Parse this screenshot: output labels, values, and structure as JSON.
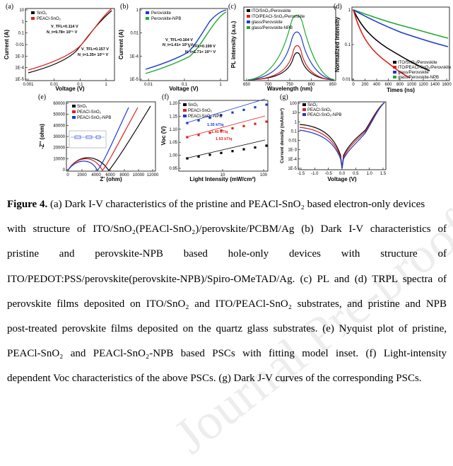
{
  "panels": {
    "a": {
      "label": "(a)",
      "xlabel": "Voltage (V)",
      "ylabel": "Current (A)",
      "xticks": [
        "0.001",
        "0.01",
        "0.1",
        "1"
      ],
      "yticks": [
        "10",
        "1",
        "0.1",
        "0.01",
        "1E-3",
        "1E-4",
        "1E-5"
      ],
      "legend": [
        "SnO₂",
        "PEACl-SnO₂"
      ],
      "colors": [
        "#000000",
        "#e0201a"
      ],
      "notes": [
        "V_TFL=0.114 V",
        "N_t=9.78× 10¹⁵ V",
        "V_TFL=0.157 V",
        "N_t=1.35× 10¹⁶ V"
      ]
    },
    "b": {
      "label": "(b)",
      "xlabel": "Voltage (V)",
      "ylabel": "Current (A)",
      "xticks": [
        "0.01",
        "0.1",
        "1"
      ],
      "yticks": [
        "1",
        "0.01",
        "1E-4",
        "1E-5"
      ],
      "legend": [
        "Perovskite",
        "Perovskite-NPB"
      ],
      "colors": [
        "#1a3ccf",
        "#22a832"
      ],
      "notes": [
        "V_TFL=0.164 V",
        "N_t=1.41× 10¹⁶ V",
        "V_TFL=0.199 V",
        "N_t=1.71× 10¹⁶ V"
      ]
    },
    "c": {
      "label": "(c)",
      "xlabel": "Wavelength (nm)",
      "ylabel": "PL intensity (a.u.)",
      "xticks": [
        "650",
        "700",
        "750",
        "800",
        "850"
      ],
      "legend": [
        "ITO/SnO₂/Perovskite",
        "ITO/PEACl-SnO₂/Perovskite",
        "glass/Perovskite",
        "glass/Perovskite-NPB"
      ],
      "colors": [
        "#000000",
        "#e0201a",
        "#1a3ccf",
        "#22a832"
      ]
    },
    "d": {
      "label": "(d)",
      "xlabel": "Times (ns)",
      "ylabel": "Normalized intensity",
      "xticks": [
        "0",
        "200",
        "400",
        "600",
        "800",
        "1000",
        "1200",
        "1400",
        "1600"
      ],
      "yticks": [
        "1",
        "0.1",
        "0.01"
      ],
      "legend": [
        "ITO/SnO₂/Perovskite",
        "ITO/PEACl-SnO₂/Perovskite",
        "glass/Perovskite",
        "glass/Perovskite-NPB"
      ],
      "colors": [
        "#000000",
        "#e0201a",
        "#1a3ccf",
        "#22a832"
      ]
    },
    "e": {
      "label": "(e)",
      "xlabel": "Z' (ohm)",
      "ylabel": "-Z'' (ohm)",
      "xticks": [
        "0",
        "2000",
        "4000",
        "6000",
        "8000",
        "10000",
        "12000"
      ],
      "yticks": [
        "0",
        "10000",
        "20000",
        "30000",
        "40000",
        "50000",
        "60000"
      ],
      "legend": [
        "SnO₂",
        "PEACl-SnO₂",
        "PEACl-SnO₂-NPB"
      ],
      "colors": [
        "#000000",
        "#e0201a",
        "#1a3ccf"
      ]
    },
    "f": {
      "label": "(f)",
      "xlabel": "Light Intensity (mW/cm²)",
      "ylabel": "Voc (V)",
      "xticks": [
        "10",
        "100"
      ],
      "yticks": [
        "1.20",
        "1.15",
        "1.10",
        "1.05",
        "1.00",
        "0.95"
      ],
      "legend": [
        "SnO₂",
        "PEACl-SnO₂",
        "PEACl-SnO₂-NPB"
      ],
      "colors": [
        "#000000",
        "#e0201a",
        "#1a3ccf"
      ],
      "notes": [
        "1.35 kT/q",
        "1.40 kT/q",
        "1.53 kT/q"
      ]
    },
    "g": {
      "label": "(g)",
      "xlabel": "Voltage (V)",
      "ylabel": "Current density (mA/cm²)",
      "xticks": [
        "-1.5",
        "-1.0",
        "-0.5",
        "0.0",
        "0.5",
        "1.0",
        "1.5"
      ],
      "yticks": [
        "100",
        "10",
        "1",
        "0.1",
        "0.01",
        "1E-3",
        "1E-4",
        "1E-5"
      ],
      "legend": [
        "SnO₂",
        "PEACl-SnO₂",
        "PEACl-SnO₂-NPB"
      ],
      "colors": [
        "#000000",
        "#e0201a",
        "#1a3ccf"
      ]
    }
  },
  "caption": {
    "lines": [
      "Figure 4. (a) Dark I-V characteristics of the pristine and PEACl-SnO₂ based electron-only devices",
      "with structure of ITO/SnO₂(PEACl-SnO₂)/perovskite/PCBM/Ag (b) Dark I-V characteristics of",
      "pristine and perovskite-NPB based hole-only devices with structure of",
      "ITO/PEDOT:PSS/perovskite(perovskite-NPB)/Spiro-OMeTAD/Ag. (c) PL and (d) TRPL spectra of",
      "perovskite films deposited on ITO/SnO₂ and ITO/PEACl-SnO₂ substrates, and pristine and NPB",
      "post-treated perovskite films deposited on the quartz glass substrates. (e) Nyquist plot of pristine,",
      "PEACl-SnO₂ and PEACl-SnO₂-NPB based PSCs with fitting model inset. (f) Light-intensity",
      "dependent Voc characteristics of the above PSCs. (g) Dark J-V curves of the corresponding PSCs."
    ]
  },
  "watermark": "Journal Pre-proofs"
}
